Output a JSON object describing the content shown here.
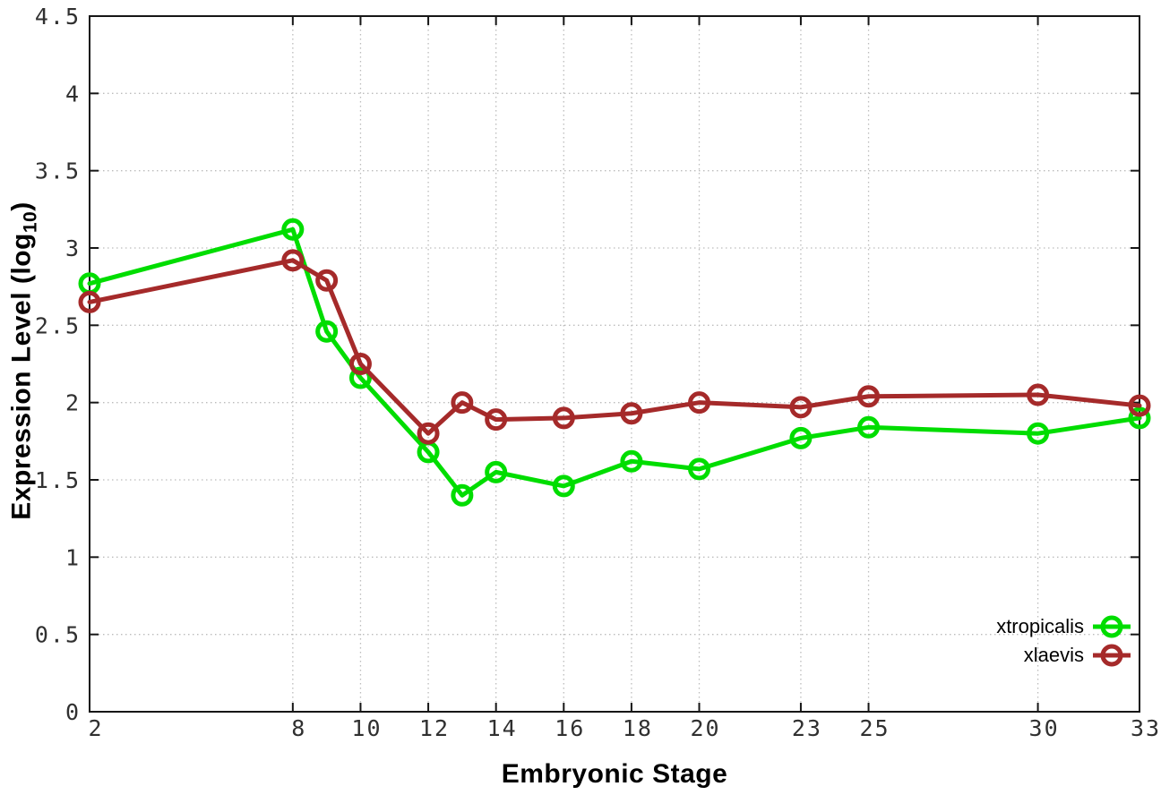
{
  "chart_data": {
    "type": "line",
    "title": "",
    "xlabel": "Embryonic Stage",
    "ylabel": "Expression Level (log10)",
    "ylabel_parts": {
      "prefix": "Expression Level (log",
      "sub": "10",
      "suffix": ")"
    },
    "x": [
      2,
      8,
      9,
      10,
      12,
      13,
      14,
      16,
      18,
      20,
      23,
      25,
      30,
      33
    ],
    "series": [
      {
        "name": "xtropicalis",
        "color": "#00dd00",
        "values": [
          2.77,
          3.12,
          2.46,
          2.16,
          1.68,
          1.4,
          1.55,
          1.46,
          1.62,
          1.57,
          1.77,
          1.84,
          1.8,
          1.9
        ]
      },
      {
        "name": "xlaevis",
        "color": "#a52a2a",
        "values": [
          2.65,
          2.92,
          2.79,
          2.25,
          1.8,
          2.0,
          1.89,
          1.9,
          1.93,
          2.0,
          1.97,
          2.04,
          2.05,
          1.98
        ]
      }
    ],
    "xticks": {
      "values": [
        2,
        8,
        10,
        12,
        14,
        16,
        18,
        20,
        23,
        25,
        30,
        33
      ],
      "labels": [
        "2",
        "8",
        "10",
        "12",
        "14",
        "16",
        "18",
        "20",
        "23",
        "25",
        "30",
        "33"
      ]
    },
    "yticks": {
      "values": [
        0,
        0.5,
        1,
        1.5,
        2,
        2.5,
        3,
        3.5,
        4,
        4.5
      ],
      "labels": [
        "0",
        "0.5",
        "1",
        "1.5",
        "2",
        "2.5",
        "3",
        "3.5",
        "4",
        "4.5"
      ]
    },
    "xlim": [
      2,
      33
    ],
    "ylim": [
      0,
      4.5
    ],
    "grid": true,
    "grid_style": "dotted",
    "legend_position": "bottom-right",
    "marker": "open-circle",
    "colors": {
      "grid": "#bcbcbc",
      "axis": "#161616",
      "tick_label": "#303030",
      "background": "#ffffff"
    }
  }
}
